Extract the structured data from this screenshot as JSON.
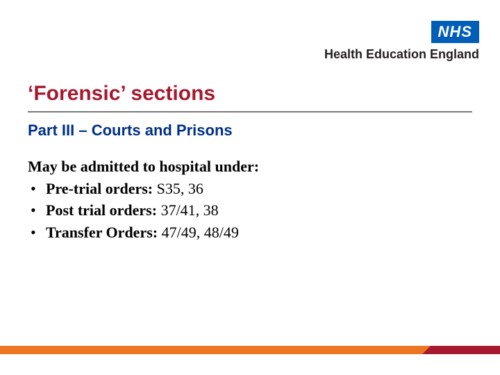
{
  "logo": {
    "nhs_text": "NHS",
    "hee_text": "Health Education England",
    "nhs_bg": "#005eb8",
    "nhs_fg": "#ffffff",
    "hee_color": "#231f20"
  },
  "title": {
    "text": "‘Forensic’ sections",
    "color": "#a6192e",
    "fontsize": 30
  },
  "rule_color": "#777777",
  "subtitle": {
    "text": "Part III – Courts and Prisons",
    "color": "#003087",
    "fontsize": 22
  },
  "body": {
    "intro": "May be admitted to hospital under:",
    "color": "#000000",
    "fontsize": 22,
    "bullets": [
      {
        "label": "Pre-trial orders:",
        "value": " S35, 36"
      },
      {
        "label": "Post trial orders:",
        "value": " 37/41, 38"
      },
      {
        "label": "Transfer Orders:",
        "value": " 47/49, 48/49"
      }
    ]
  },
  "footer": {
    "left_color": "#ee7623",
    "right_color": "#a6192e"
  }
}
